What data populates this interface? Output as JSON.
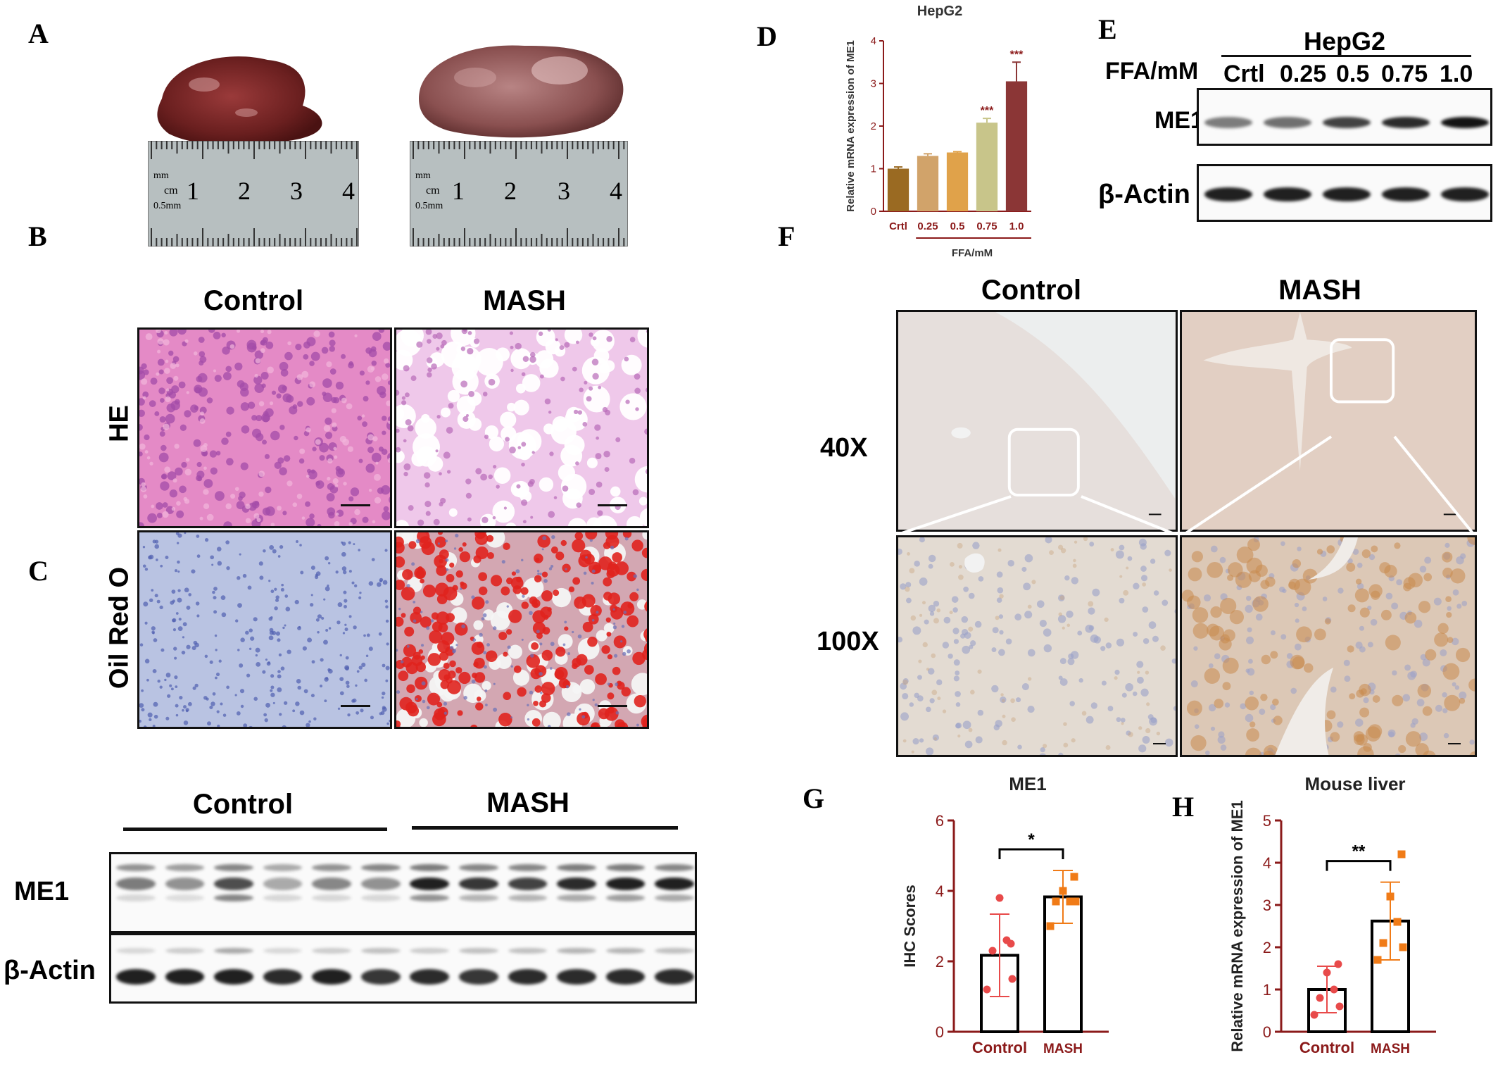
{
  "panel_labels": {
    "A": "A",
    "B": "B",
    "C": "C",
    "D": "D",
    "E": "E",
    "F": "F",
    "G": "G",
    "H": "H"
  },
  "panel_a": {
    "ruler_labels": {
      "cm": "cm",
      "mm": "mm",
      "half_mm": "0.5mm",
      "ticks": [
        "1",
        "2",
        "3",
        "4"
      ]
    }
  },
  "panel_b": {
    "col_control": "Control",
    "col_mash": "MASH",
    "row_he": "HE",
    "row_oil": "Oil Red O"
  },
  "panel_c": {
    "group_control": "Control",
    "group_mash": "MASH",
    "row_me1": "ME1",
    "row_actin": "β-Actin"
  },
  "panel_d": {
    "title": "HepG2"
  },
  "panel_e": {
    "cell_line": "HepG2",
    "ffa_label": "FFA/mM",
    "lanes": [
      "Crtl",
      "0.25",
      "0.5",
      "0.75",
      "1.0"
    ],
    "row_me1": "ME1",
    "row_actin": "β-Actin"
  },
  "panel_f": {
    "col_control": "Control",
    "col_mash": "MASH",
    "row_40x": "40X",
    "row_100x": "100X"
  },
  "chart_data": [
    {
      "panel": "D",
      "type": "bar",
      "title": "HepG2",
      "categories": [
        "Crtl",
        "0.25",
        "0.5",
        "0.75",
        "1.0"
      ],
      "values": [
        1.0,
        1.3,
        1.38,
        2.08,
        3.05
      ],
      "errors": [
        0.04,
        0.05,
        0.02,
        0.1,
        0.45
      ],
      "significance": [
        "",
        "",
        "",
        "***",
        "***"
      ],
      "colors": [
        "#9a6a22",
        "#d1a36a",
        "#e0a24a",
        "#c8c58a",
        "#8b3636"
      ],
      "xlabel": "FFA/mM",
      "ylabel": "Relative mRNA expression of ME1",
      "yticks": [
        0,
        1,
        2,
        3,
        4
      ],
      "ylim": [
        0,
        4
      ],
      "axis_color": "#8b1a1a"
    },
    {
      "panel": "G",
      "type": "bar",
      "title": "ME1",
      "categories": [
        "Control",
        "MASH"
      ],
      "values": [
        2.17,
        3.83
      ],
      "errors": [
        1.17,
        0.75
      ],
      "points": [
        [
          1.2,
          1.5,
          2.3,
          2.6,
          3.8,
          2.5
        ],
        [
          3.0,
          3.7,
          3.7,
          3.7,
          4.0,
          4.4
        ]
      ],
      "point_colors": [
        "#e84a4a",
        "#f07b17"
      ],
      "significance": "*",
      "xlabel": "",
      "ylabel": "IHC Scores",
      "yticks": [
        0,
        2,
        4,
        6
      ],
      "ylim": [
        0,
        6
      ],
      "axis_color": "#8b1a1a"
    },
    {
      "panel": "H",
      "type": "bar",
      "title": "Mouse liver",
      "categories": [
        "Control",
        "MASH"
      ],
      "values": [
        1.0,
        2.62
      ],
      "errors": [
        0.55,
        0.92
      ],
      "points": [
        [
          0.4,
          0.6,
          0.8,
          1.0,
          1.4,
          1.6
        ],
        [
          1.7,
          2.0,
          2.1,
          2.6,
          3.2,
          4.2
        ]
      ],
      "point_colors": [
        "#e84a4a",
        "#f07b17"
      ],
      "significance": "**",
      "xlabel": "",
      "ylabel": "Relative mRNA expression of ME1",
      "yticks": [
        0,
        1,
        2,
        3,
        4,
        5
      ],
      "ylim": [
        0,
        5
      ],
      "axis_color": "#8b1a1a"
    }
  ]
}
